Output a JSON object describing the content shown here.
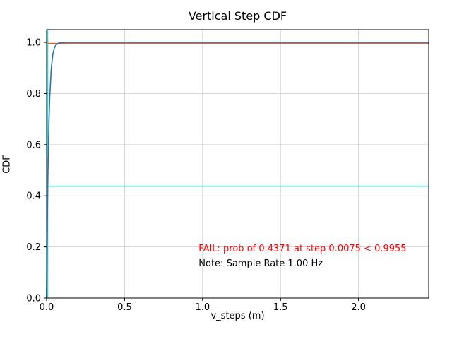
{
  "chart_data": {
    "type": "line",
    "title": "Vertical Step CDF",
    "xlabel": "v_steps (m)",
    "ylabel": "CDF",
    "xlim": [
      0,
      2.45
    ],
    "ylim": [
      0,
      1.05
    ],
    "grid": true,
    "grid_color": "#cccccc",
    "xticks": [
      0.0,
      0.5,
      1.0,
      1.5,
      2.0
    ],
    "xtick_labels": [
      "0.0",
      "0.5",
      "1.0",
      "1.5",
      "2.0"
    ],
    "yticks": [
      0.0,
      0.2,
      0.4,
      0.6,
      0.8,
      1.0
    ],
    "ytick_labels": [
      "0.0",
      "0.2",
      "0.4",
      "0.6",
      "0.8",
      "1.0"
    ],
    "series": [
      {
        "name": "cdf-curve",
        "color": "#1f77b4",
        "points": [
          [
            0,
            0
          ],
          [
            0.001,
            0.074
          ],
          [
            0.0025,
            0.175
          ],
          [
            0.005,
            0.319
          ],
          [
            0.0075,
            0.4371
          ],
          [
            0.01,
            0.537
          ],
          [
            0.015,
            0.685
          ],
          [
            0.02,
            0.785
          ],
          [
            0.03,
            0.9
          ],
          [
            0.04,
            0.954
          ],
          [
            0.05,
            0.979
          ],
          [
            0.06,
            0.99
          ],
          [
            0.08,
            0.998
          ],
          [
            0.1,
            0.9995
          ],
          [
            0.12,
            0.9999
          ],
          [
            0.15,
            1.0
          ],
          [
            0.2,
            1.0
          ],
          [
            0.3,
            1.0
          ],
          [
            0.5,
            1.0
          ],
          [
            1.0,
            1.0
          ],
          [
            1.5,
            1.0
          ],
          [
            2.0,
            1.0
          ],
          [
            2.45,
            1.0
          ]
        ]
      }
    ],
    "hlines": [
      {
        "name": "threshold-line",
        "y": 0.9955,
        "color": "#ff3b00"
      },
      {
        "name": "probability-line",
        "y": 0.4371,
        "color": "#00dcdc"
      }
    ],
    "vlines": [
      {
        "name": "step-line",
        "x": 0.0075,
        "color": "#00dcdc"
      }
    ],
    "annotations": [
      {
        "name": "fail-message",
        "x": 0.975,
        "y": 0.182,
        "text": "FAIL: prob of 0.4371 at step 0.0075 < 0.9955",
        "color": "#ff0000"
      },
      {
        "name": "note-message",
        "x": 0.975,
        "y": 0.124,
        "text": "Note: Sample Rate 1.00 Hz",
        "color": "#000000"
      }
    ]
  }
}
